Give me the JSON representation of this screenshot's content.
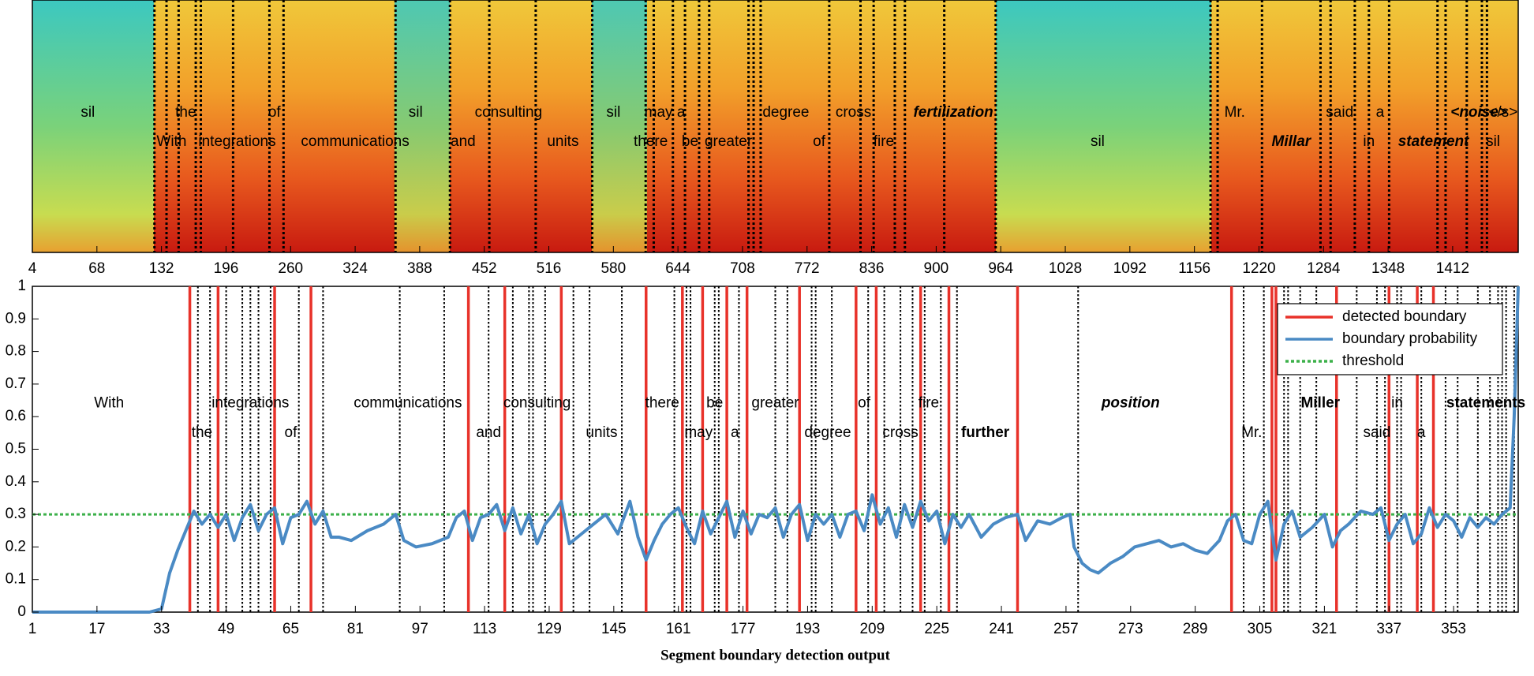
{
  "chart_data": [
    {
      "type": "spectrogram",
      "xlim": [
        4,
        1477
      ],
      "xticks": [
        4,
        68,
        132,
        196,
        260,
        324,
        388,
        452,
        516,
        580,
        644,
        708,
        772,
        836,
        900,
        964,
        1028,
        1092,
        1156,
        1220,
        1284,
        1348,
        1412
      ],
      "boundaries": [
        125,
        137,
        149,
        166,
        171,
        203,
        239,
        253,
        364,
        418,
        457,
        503,
        559,
        612,
        620,
        639,
        651,
        665,
        675,
        714,
        719,
        726,
        794,
        825,
        838,
        859,
        869,
        908,
        959,
        1172,
        1179,
        1223,
        1281,
        1291,
        1315,
        1329,
        1349,
        1397,
        1405,
        1426,
        1441,
        1446
      ],
      "labels_row1": [
        {
          "text": "sil",
          "x": 59
        },
        {
          "text": "the",
          "x": 156
        },
        {
          "text": "of",
          "x": 244
        },
        {
          "text": "sil",
          "x": 384
        },
        {
          "text": "consulting",
          "x": 476
        },
        {
          "text": "sil",
          "x": 580
        },
        {
          "text": "may a",
          "x": 631
        },
        {
          "text": "degree",
          "x": 751
        },
        {
          "text": "cross",
          "x": 818
        },
        {
          "text": "fertilization",
          "x": 917,
          "style": "bold-italic"
        },
        {
          "text": "Mr.",
          "x": 1196
        },
        {
          "text": "said",
          "x": 1300
        },
        {
          "text": "a",
          "x": 1340
        },
        {
          "text": "<noise>",
          "x": 1438,
          "style": "bold-italic",
          "color": "#e8322a"
        },
        {
          "text": "</s>",
          "x": 1462
        }
      ],
      "labels_row2": [
        {
          "text": "With",
          "x": 142
        },
        {
          "text": "integrations",
          "x": 207
        },
        {
          "text": "communications",
          "x": 324
        },
        {
          "text": "and",
          "x": 431
        },
        {
          "text": "units",
          "x": 530
        },
        {
          "text": "there",
          "x": 617
        },
        {
          "text": "be",
          "x": 656
        },
        {
          "text": "greater",
          "x": 694
        },
        {
          "text": "of",
          "x": 784
        },
        {
          "text": "fire",
          "x": 848
        },
        {
          "text": "sil",
          "x": 1060
        },
        {
          "text": "Millar",
          "x": 1252,
          "style": "bold-italic"
        },
        {
          "text": "in",
          "x": 1329
        },
        {
          "text": "statement",
          "x": 1393,
          "style": "bold-italic"
        },
        {
          "text": "sil",
          "x": 1452
        }
      ]
    },
    {
      "type": "line",
      "xlabel": "Segment boundary detection output",
      "xlim": [
        1,
        369
      ],
      "ylim": [
        0,
        1
      ],
      "xticks": [
        1,
        17,
        33,
        49,
        65,
        81,
        97,
        113,
        129,
        145,
        161,
        177,
        193,
        209,
        225,
        241,
        257,
        273,
        289,
        305,
        321,
        337,
        353
      ],
      "yticks": [
        0,
        0.1,
        0.2,
        0.3,
        0.4,
        0.5,
        0.6,
        0.7,
        0.8,
        0.9,
        1
      ],
      "legend": "upper right",
      "detected": {
        "name": "detected boundary",
        "color": "#e8322a",
        "x": [
          40,
          47,
          61,
          70,
          109,
          118,
          132,
          153,
          162,
          167,
          173,
          178,
          191,
          205,
          210,
          221,
          228,
          245,
          298,
          308,
          309,
          324,
          337,
          344,
          348
        ]
      },
      "series": [
        {
          "name": "boundary probability",
          "color": "#4a8ac4",
          "x": [
            1,
            10,
            20,
            30,
            33,
            35,
            37,
            39,
            41,
            43,
            45,
            47,
            49,
            51,
            53,
            55,
            57,
            59,
            61,
            63,
            65,
            67,
            69,
            71,
            73,
            75,
            77,
            80,
            84,
            88,
            91,
            93,
            96,
            100,
            104,
            106,
            108,
            110,
            112,
            114,
            116,
            118,
            120,
            122,
            124,
            126,
            128,
            130,
            132,
            134,
            137,
            140,
            143,
            146,
            149,
            151,
            153,
            155,
            157,
            159,
            161,
            163,
            165,
            167,
            169,
            171,
            173,
            175,
            177,
            179,
            181,
            183,
            185,
            187,
            189,
            191,
            193,
            195,
            197,
            199,
            201,
            203,
            205,
            207,
            209,
            211,
            213,
            215,
            217,
            219,
            221,
            223,
            225,
            227,
            229,
            231,
            233,
            236,
            239,
            242,
            245,
            247,
            250,
            253,
            256,
            258,
            259,
            261,
            263,
            265,
            268,
            271,
            274,
            277,
            280,
            283,
            286,
            289,
            292,
            295,
            297,
            299,
            301,
            303,
            305,
            307,
            309,
            311,
            313,
            315,
            318,
            321,
            323,
            325,
            327,
            330,
            333,
            335,
            337,
            339,
            341,
            343,
            345,
            347,
            349,
            351,
            353,
            355,
            357,
            359,
            361,
            363,
            365,
            367,
            368,
            369
          ],
          "values": [
            0,
            0,
            0,
            0,
            0.01,
            0.12,
            0.19,
            0.25,
            0.31,
            0.27,
            0.3,
            0.26,
            0.3,
            0.22,
            0.29,
            0.33,
            0.25,
            0.3,
            0.32,
            0.21,
            0.29,
            0.3,
            0.34,
            0.27,
            0.31,
            0.23,
            0.23,
            0.22,
            0.25,
            0.27,
            0.3,
            0.22,
            0.2,
            0.21,
            0.23,
            0.29,
            0.31,
            0.22,
            0.29,
            0.3,
            0.33,
            0.25,
            0.32,
            0.24,
            0.3,
            0.21,
            0.27,
            0.3,
            0.34,
            0.21,
            0.24,
            0.27,
            0.3,
            0.24,
            0.34,
            0.23,
            0.16,
            0.22,
            0.27,
            0.3,
            0.32,
            0.26,
            0.21,
            0.31,
            0.24,
            0.29,
            0.34,
            0.23,
            0.31,
            0.24,
            0.3,
            0.29,
            0.32,
            0.23,
            0.3,
            0.33,
            0.22,
            0.3,
            0.27,
            0.3,
            0.23,
            0.3,
            0.31,
            0.25,
            0.36,
            0.27,
            0.32,
            0.23,
            0.33,
            0.26,
            0.34,
            0.28,
            0.31,
            0.21,
            0.3,
            0.26,
            0.3,
            0.23,
            0.27,
            0.29,
            0.3,
            0.22,
            0.28,
            0.27,
            0.29,
            0.3,
            0.2,
            0.15,
            0.13,
            0.12,
            0.15,
            0.17,
            0.2,
            0.21,
            0.22,
            0.2,
            0.21,
            0.19,
            0.18,
            0.22,
            0.28,
            0.3,
            0.22,
            0.21,
            0.3,
            0.34,
            0.16,
            0.27,
            0.31,
            0.23,
            0.26,
            0.3,
            0.2,
            0.25,
            0.27,
            0.31,
            0.3,
            0.32,
            0.22,
            0.27,
            0.3,
            0.21,
            0.24,
            0.32,
            0.26,
            0.3,
            0.28,
            0.23,
            0.29,
            0.26,
            0.29,
            0.27,
            0.3,
            0.32,
            0.6,
            1
          ]
        }
      ],
      "threshold": {
        "name": "threshold",
        "color": "#3cb04a",
        "value": 0.3
      },
      "boundaries": [
        42,
        45,
        49,
        53,
        55,
        57,
        60,
        67,
        73,
        92,
        103,
        109,
        114,
        120,
        124,
        125,
        128,
        135,
        139,
        147,
        160,
        163,
        164,
        170,
        171,
        176,
        185,
        188,
        194,
        195,
        199,
        208,
        212,
        216,
        219,
        222,
        226,
        230,
        260,
        301,
        306,
        311,
        312,
        315,
        319,
        329,
        334,
        336,
        339,
        340,
        345,
        351,
        354,
        359,
        362,
        364,
        365,
        366,
        368
      ],
      "labels": [
        {
          "text": "With",
          "x": 20,
          "y": 0.64
        },
        {
          "text": "integrations",
          "x": 55,
          "y": 0.64
        },
        {
          "text": "communications",
          "x": 94,
          "y": 0.64
        },
        {
          "text": "consulting",
          "x": 126,
          "y": 0.64
        },
        {
          "text": "there",
          "x": 157,
          "y": 0.64
        },
        {
          "text": "be",
          "x": 170,
          "y": 0.64
        },
        {
          "text": "greater",
          "x": 185,
          "y": 0.64
        },
        {
          "text": "of",
          "x": 207,
          "y": 0.64
        },
        {
          "text": "fire",
          "x": 223,
          "y": 0.64
        },
        {
          "text": "position",
          "x": 273,
          "y": 0.64,
          "style": "bold-italic",
          "color": "#e8322a"
        },
        {
          "text": "Miller",
          "x": 320,
          "y": 0.64,
          "style": "bold",
          "color": "#e8322a"
        },
        {
          "text": "in",
          "x": 339,
          "y": 0.64
        },
        {
          "text": "statements",
          "x": 361,
          "y": 0.64,
          "style": "bold",
          "color": "#e8322a"
        },
        {
          "text": "the",
          "x": 43,
          "y": 0.55
        },
        {
          "text": "of",
          "x": 65,
          "y": 0.55
        },
        {
          "text": "and",
          "x": 114,
          "y": 0.55
        },
        {
          "text": "units",
          "x": 142,
          "y": 0.55
        },
        {
          "text": "may",
          "x": 166,
          "y": 0.55
        },
        {
          "text": "a",
          "x": 175,
          "y": 0.55
        },
        {
          "text": "degree",
          "x": 198,
          "y": 0.55
        },
        {
          "text": "cross",
          "x": 216,
          "y": 0.55
        },
        {
          "text": "further",
          "x": 237,
          "y": 0.55,
          "style": "bold",
          "color": "#e8322a"
        },
        {
          "text": "Mr.",
          "x": 303,
          "y": 0.55
        },
        {
          "text": "said",
          "x": 334,
          "y": 0.55
        },
        {
          "text": "a",
          "x": 345,
          "y": 0.55
        }
      ]
    }
  ]
}
